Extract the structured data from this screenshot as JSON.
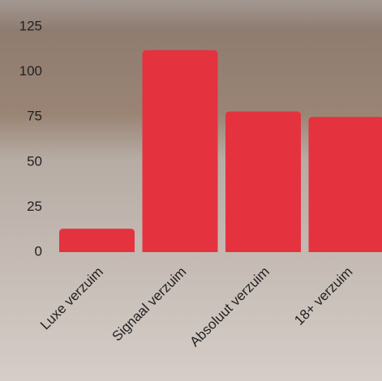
{
  "chart_data": {
    "type": "bar",
    "categories": [
      "Luxe verzuim",
      "Signaal verzuim",
      "Absoluut verzuim",
      "18+ verzuim"
    ],
    "values": [
      13,
      112,
      78,
      75
    ],
    "color": "#e5323f",
    "ylim": [
      0,
      125
    ],
    "yticks": [
      0,
      25,
      50,
      75,
      100,
      125
    ],
    "grid": false
  }
}
